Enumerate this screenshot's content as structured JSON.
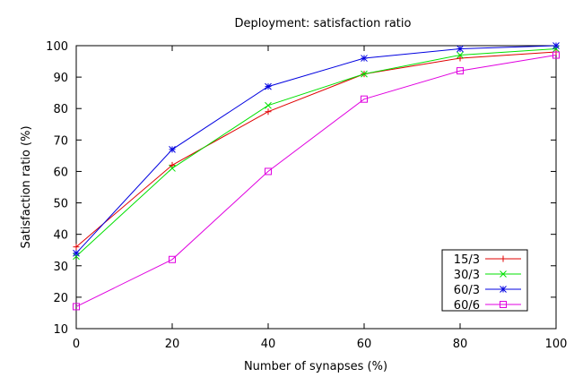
{
  "chart_data": {
    "type": "line",
    "title": "Deployment: satisfaction ratio",
    "xlabel": "Number of synapses (%)",
    "ylabel": "Satisfaction ratio (%)",
    "xlim": [
      0,
      100
    ],
    "ylim": [
      10,
      100
    ],
    "xticks": [
      0,
      20,
      40,
      60,
      80,
      100
    ],
    "yticks": [
      10,
      20,
      30,
      40,
      50,
      60,
      70,
      80,
      90,
      100
    ],
    "grid": false,
    "legend_position": "bottom-right",
    "x": [
      0,
      20,
      40,
      60,
      80,
      100
    ],
    "series": [
      {
        "name": "15/3",
        "color": "#e00000",
        "marker": "plus",
        "values": [
          36,
          62,
          79,
          91,
          96,
          98
        ]
      },
      {
        "name": "30/3",
        "color": "#00e000",
        "marker": "cross",
        "values": [
          33,
          61,
          81,
          91,
          97,
          99
        ]
      },
      {
        "name": "60/3",
        "color": "#0000e0",
        "marker": "star",
        "values": [
          34,
          67,
          87,
          96,
          99,
          100
        ]
      },
      {
        "name": "60/6",
        "color": "#e000e0",
        "marker": "square",
        "values": [
          17,
          32,
          60,
          83,
          92,
          97
        ]
      }
    ]
  }
}
